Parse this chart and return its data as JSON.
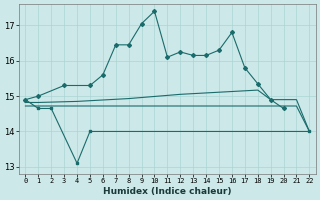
{
  "xlabel": "Humidex (Indice chaleur)",
  "background_color": "#cce8e8",
  "grid_color": "#aad4d4",
  "line_color": "#1a6b6b",
  "xlim": [
    -0.5,
    22.5
  ],
  "ylim": [
    12.8,
    17.6
  ],
  "yticks": [
    13,
    14,
    15,
    16,
    17
  ],
  "xticks": [
    0,
    1,
    2,
    3,
    4,
    5,
    6,
    7,
    8,
    9,
    10,
    11,
    12,
    13,
    14,
    15,
    16,
    17,
    18,
    19,
    20,
    21,
    22
  ],
  "s1x": [
    0,
    1,
    3,
    5,
    6,
    7,
    8,
    9,
    10,
    11,
    12,
    13,
    14,
    15,
    16,
    17,
    18,
    19,
    20
  ],
  "s1y": [
    14.9,
    15.0,
    15.3,
    15.3,
    15.6,
    16.45,
    16.45,
    17.05,
    17.4,
    16.1,
    16.25,
    16.15,
    16.15,
    16.3,
    16.8,
    15.8,
    15.35,
    14.9,
    14.65
  ],
  "s2x": [
    0,
    1,
    2,
    4,
    5,
    22
  ],
  "s2y": [
    14.9,
    14.65,
    14.65,
    13.1,
    14.0,
    14.0
  ],
  "s3x": [
    0,
    1,
    2,
    3,
    4,
    5,
    6,
    7,
    8,
    9,
    10,
    11,
    12,
    13,
    14,
    15,
    16,
    17,
    18,
    19,
    20,
    21,
    22
  ],
  "s3y": [
    14.82,
    14.82,
    14.83,
    14.84,
    14.85,
    14.87,
    14.89,
    14.91,
    14.93,
    14.96,
    14.99,
    15.02,
    15.05,
    15.07,
    15.09,
    15.11,
    15.13,
    15.15,
    15.17,
    14.9,
    14.9,
    14.9,
    14.0
  ],
  "s4x": [
    0,
    1,
    2,
    3,
    4,
    5,
    6,
    7,
    8,
    9,
    10,
    11,
    12,
    13,
    14,
    15,
    16,
    17,
    18,
    19,
    20,
    21,
    22
  ],
  "s4y": [
    14.72,
    14.72,
    14.72,
    14.72,
    14.72,
    14.72,
    14.72,
    14.72,
    14.72,
    14.72,
    14.72,
    14.72,
    14.72,
    14.72,
    14.72,
    14.72,
    14.72,
    14.72,
    14.72,
    14.72,
    14.72,
    14.72,
    14.0
  ]
}
